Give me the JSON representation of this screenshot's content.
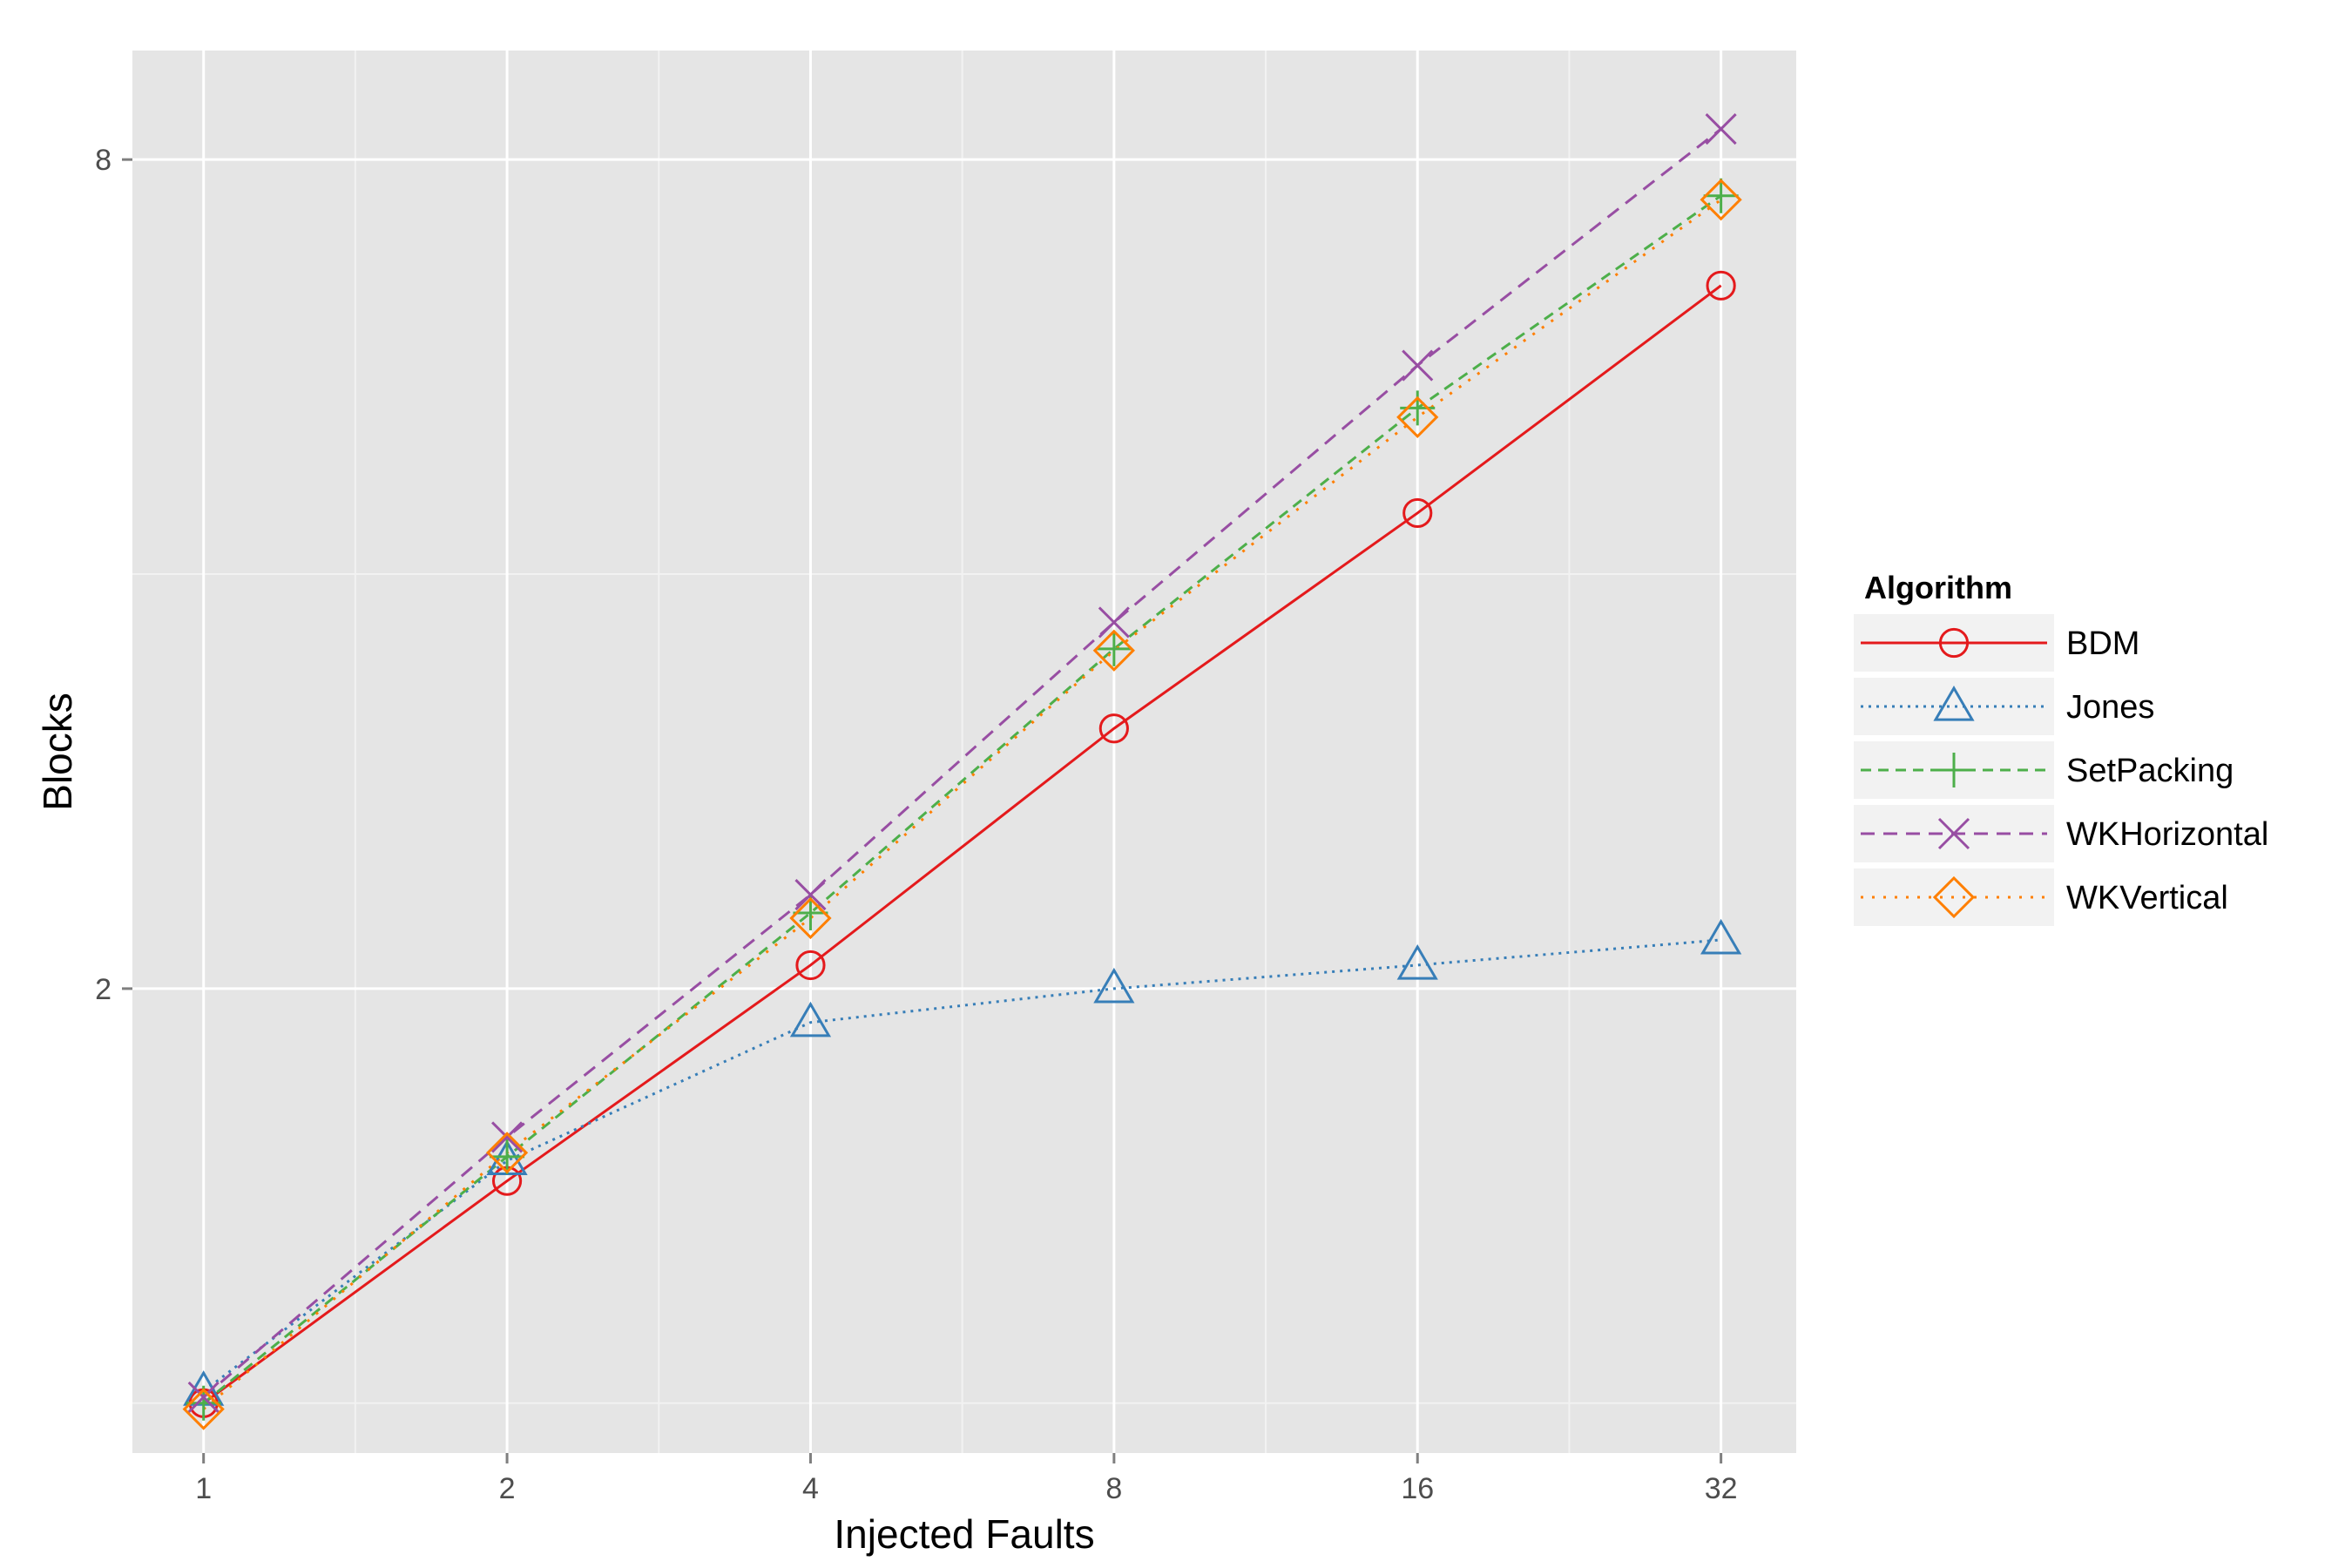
{
  "chart_data": {
    "type": "line",
    "xlabel": "Injected Faults",
    "ylabel": "Blocks",
    "x": [
      1,
      2,
      4,
      8,
      16,
      32
    ],
    "x_scale": "log2",
    "y_scale": "log",
    "xlim": [
      0.85,
      38
    ],
    "ylim": [
      0.92,
      9.6
    ],
    "x_ticks": [
      1,
      2,
      4,
      8,
      16,
      32
    ],
    "y_ticks": [
      2,
      8
    ],
    "grid": true,
    "legend": {
      "title": "Algorithm",
      "position": "right"
    },
    "series": [
      {
        "name": "BDM",
        "values": [
          1.0,
          1.45,
          2.08,
          3.09,
          4.43,
          6.48
        ],
        "color": "#e41a1c",
        "marker": "circle",
        "dash": "solid"
      },
      {
        "name": "Jones",
        "values": [
          1.02,
          1.5,
          1.89,
          2.0,
          2.08,
          2.17
        ],
        "color": "#377eb8",
        "marker": "triangle",
        "dash": "dotted"
      },
      {
        "name": "SetPacking",
        "values": [
          1.0,
          1.51,
          2.27,
          3.53,
          5.28,
          7.53
        ],
        "color": "#4daf4a",
        "marker": "plus",
        "dash": "dashed"
      },
      {
        "name": "WKHorizontal",
        "values": [
          1.01,
          1.56,
          2.34,
          3.69,
          5.67,
          8.42
        ],
        "color": "#984ea3",
        "marker": "cross",
        "dash": "dashed-long"
      },
      {
        "name": "WKVertical",
        "values": [
          0.99,
          1.52,
          2.25,
          3.52,
          5.2,
          7.48
        ],
        "color": "#ff7f00",
        "marker": "diamond",
        "dash": "dotted-wide"
      }
    ]
  }
}
